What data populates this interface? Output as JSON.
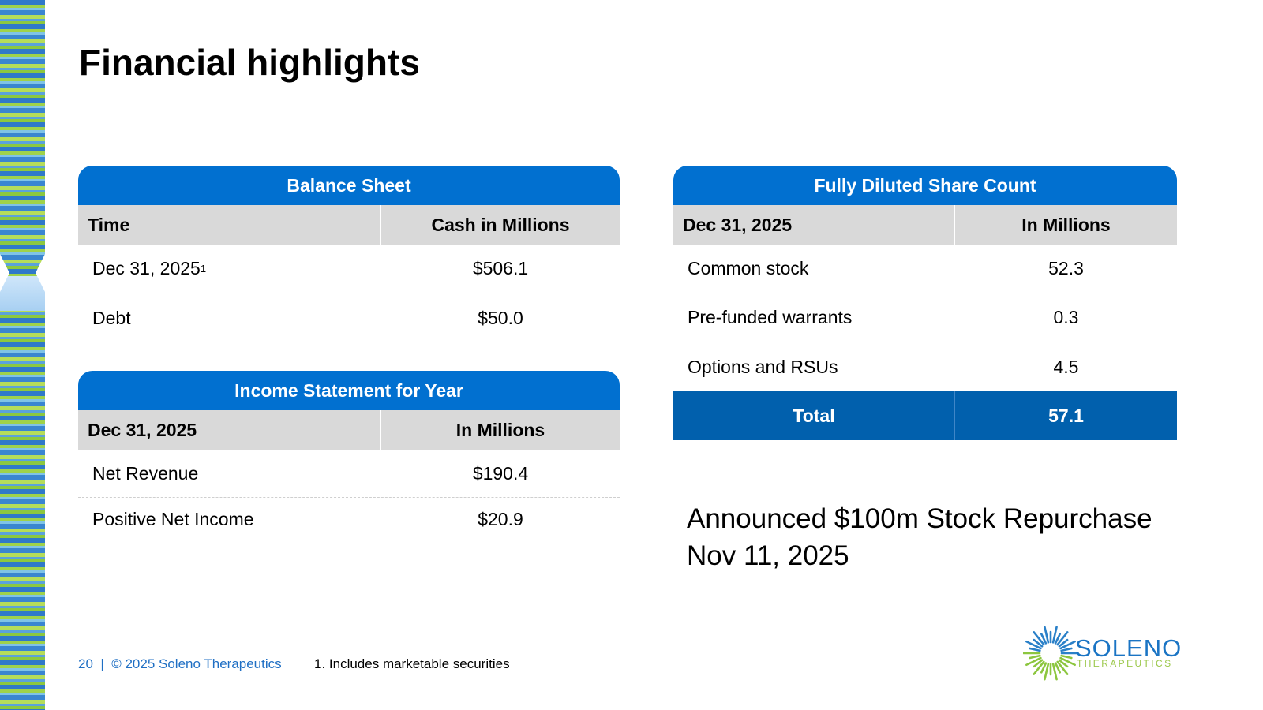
{
  "title": "Financial highlights",
  "balance_sheet": {
    "header": "Balance Sheet",
    "columns": [
      "Time",
      "Cash in Millions"
    ],
    "rows": [
      {
        "label": "Dec 31, 2025",
        "sup": "1",
        "value": "$506.1"
      },
      {
        "label": "Debt",
        "value": "$50.0"
      }
    ]
  },
  "income_statement": {
    "header": "Income Statement for Year",
    "columns": [
      "Dec 31, 2025",
      "In Millions"
    ],
    "rows": [
      {
        "label": "Net Revenue",
        "value": "$190.4"
      },
      {
        "label": "Positive Net Income",
        "value": "$20.9"
      }
    ]
  },
  "share_count": {
    "header": "Fully Diluted Share Count",
    "columns": [
      "Dec 31, 2025",
      "In Millions"
    ],
    "rows": [
      {
        "label": "Common stock",
        "value": "52.3"
      },
      {
        "label": "Pre-funded warrants",
        "value": "0.3"
      },
      {
        "label": "Options and RSUs",
        "value": "4.5"
      }
    ],
    "total": {
      "label": "Total",
      "value": "57.1"
    }
  },
  "announcement": {
    "line1": "Announced $100m Stock Repurchase",
    "line2": "Nov 11, 2025"
  },
  "footer": {
    "page_copyright": "20  |  © 2025 Soleno Therapeutics",
    "footnote": "1. Includes marketable securities"
  },
  "logo": {
    "name": "SOLENO",
    "subtitle": "THERAPEUTICS",
    "colors": {
      "name": "#1a74c4",
      "subtitle": "#9bc84a",
      "rays_blue": "#2a80c8",
      "rays_green": "#8cc63f"
    }
  },
  "colors": {
    "header_blue": "#0170d0",
    "total_blue": "#0160ad",
    "column_gray": "#d9d9d9",
    "footer_blue": "#1f6fc4"
  }
}
